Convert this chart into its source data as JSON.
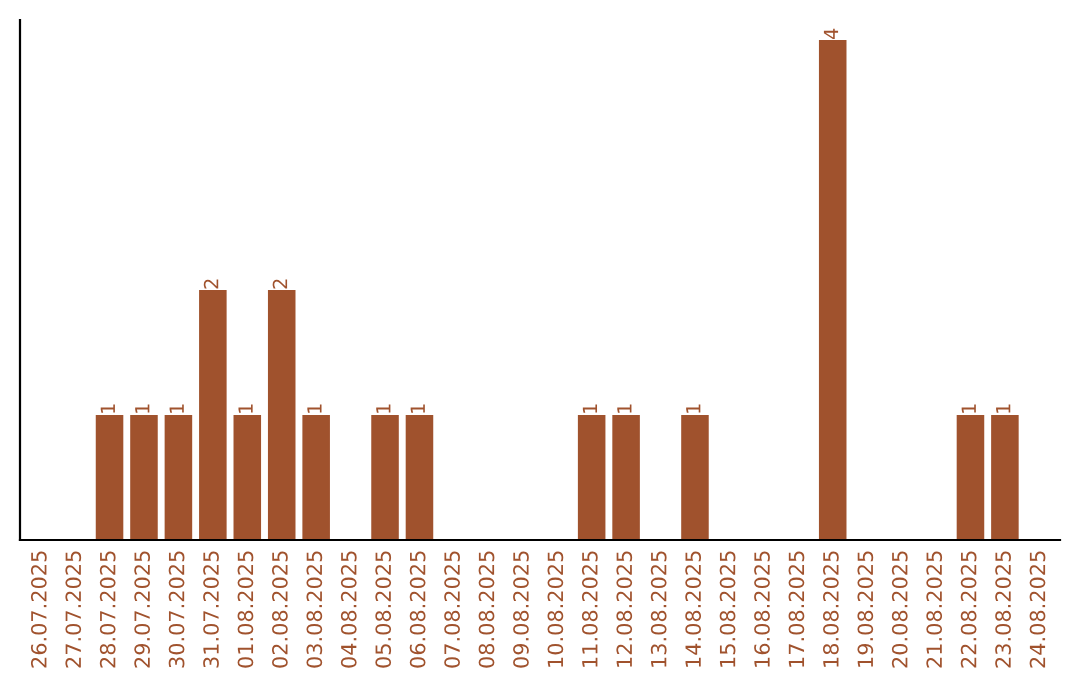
{
  "chart_data": {
    "type": "bar",
    "categories": [
      "26.07.2025",
      "27.07.2025",
      "28.07.2025",
      "29.07.2025",
      "30.07.2025",
      "31.07.2025",
      "01.08.2025",
      "02.08.2025",
      "03.08.2025",
      "04.08.2025",
      "05.08.2025",
      "06.08.2025",
      "07.08.2025",
      "08.08.2025",
      "09.08.2025",
      "10.08.2025",
      "11.08.2025",
      "12.08.2025",
      "13.08.2025",
      "14.08.2025",
      "15.08.2025",
      "16.08.2025",
      "17.08.2025",
      "18.08.2025",
      "19.08.2025",
      "20.08.2025",
      "21.08.2025",
      "22.08.2025",
      "23.08.2025",
      "24.08.2025"
    ],
    "values": [
      0,
      0,
      1,
      1,
      1,
      2,
      1,
      2,
      1,
      0,
      1,
      1,
      0,
      0,
      0,
      0,
      1,
      1,
      0,
      1,
      0,
      0,
      0,
      4,
      0,
      0,
      0,
      1,
      1,
      0
    ],
    "value_labels": [
      null,
      null,
      "1",
      "1",
      "1",
      "2",
      "1",
      "2",
      "1",
      null,
      "1",
      "1",
      null,
      null,
      null,
      null,
      "1",
      "1",
      null,
      "1",
      null,
      null,
      null,
      "4",
      null,
      null,
      null,
      "1",
      "1",
      null
    ],
    "color": "#a0522d",
    "ylim": [
      0,
      4.16
    ],
    "tick_labels": "x",
    "grid": false,
    "legend": false
  }
}
